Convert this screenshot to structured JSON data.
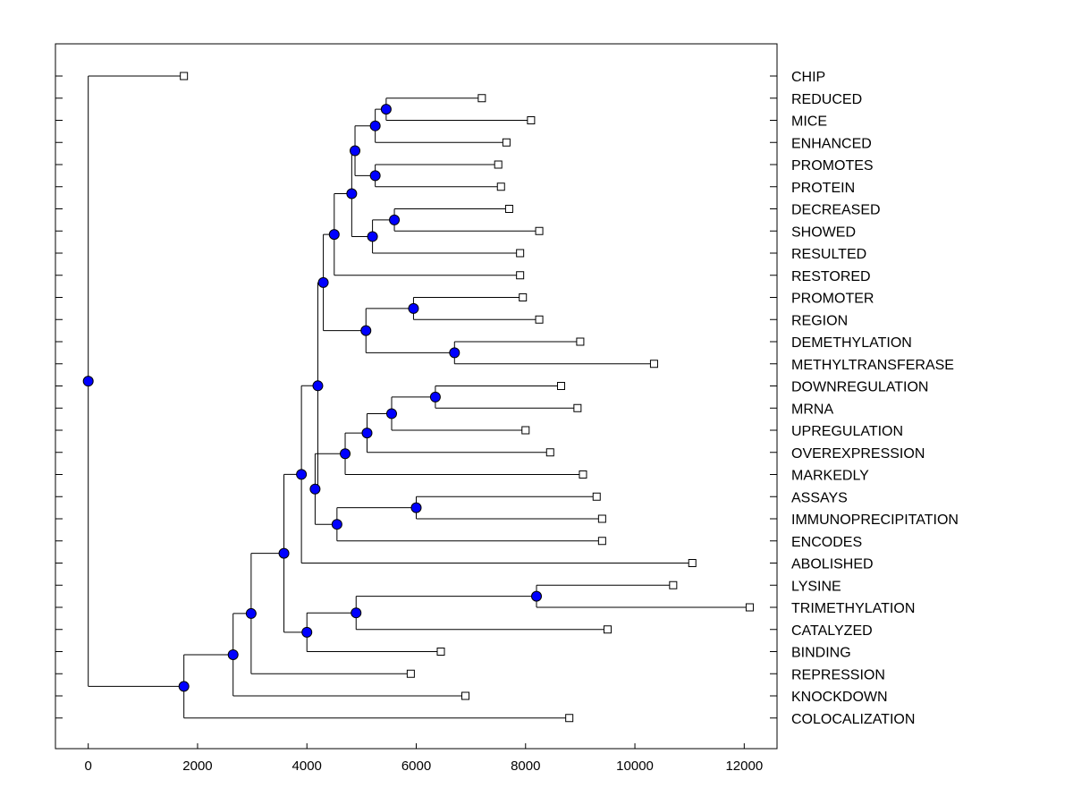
{
  "chart_data": {
    "type": "dendrogram",
    "title": "",
    "xlabel": "",
    "ylabel": "",
    "xlim": [
      -600,
      12600
    ],
    "x_ticks": [
      0,
      2000,
      4000,
      6000,
      8000,
      10000,
      12000
    ],
    "grid": false,
    "colors": {
      "node": "#0000ff",
      "line": "#000000",
      "leaf_box": "#ffffff"
    },
    "leaves": [
      {
        "label": "CHIP",
        "x": 1750
      },
      {
        "label": "REDUCED",
        "x": 7200
      },
      {
        "label": "MICE",
        "x": 8100
      },
      {
        "label": "ENHANCED",
        "x": 7650
      },
      {
        "label": "PROMOTES",
        "x": 7500
      },
      {
        "label": "PROTEIN",
        "x": 7550
      },
      {
        "label": "DECREASED",
        "x": 7700
      },
      {
        "label": "SHOWED",
        "x": 8250
      },
      {
        "label": "RESULTED",
        "x": 7900
      },
      {
        "label": "RESTORED",
        "x": 7900
      },
      {
        "label": "PROMOTER",
        "x": 7950
      },
      {
        "label": "REGION",
        "x": 8250
      },
      {
        "label": "DEMETHYLATION",
        "x": 9000
      },
      {
        "label": "METHYLTRANSFERASE",
        "x": 10350
      },
      {
        "label": "DOWNREGULATION",
        "x": 8650
      },
      {
        "label": "MRNA",
        "x": 8950
      },
      {
        "label": "UPREGULATION",
        "x": 8000
      },
      {
        "label": "OVEREXPRESSION",
        "x": 8450
      },
      {
        "label": "MARKEDLY",
        "x": 9050
      },
      {
        "label": "ASSAYS",
        "x": 9300
      },
      {
        "label": "IMMUNOPRECIPITATION",
        "x": 9400
      },
      {
        "label": "ENCODES",
        "x": 9400
      },
      {
        "label": "ABOLISHED",
        "x": 11050
      },
      {
        "label": "LYSINE",
        "x": 10700
      },
      {
        "label": "TRIMETHYLATION",
        "x": 12100
      },
      {
        "label": "CATALYZED",
        "x": 9500
      },
      {
        "label": "BINDING",
        "x": 6450
      },
      {
        "label": "REPRESSION",
        "x": 5900
      },
      {
        "label": "KNOCKDOWN",
        "x": 6900
      },
      {
        "label": "COLOCALIZATION",
        "x": 8800
      }
    ],
    "merges": [
      {
        "id": "n_rm",
        "x": 5450,
        "children": [
          "REDUCED",
          "MICE"
        ]
      },
      {
        "id": "n_rme",
        "x": 5250,
        "children": [
          "n_rm",
          "ENHANCED"
        ]
      },
      {
        "id": "n_pp",
        "x": 5250,
        "children": [
          "PROMOTES",
          "PROTEIN"
        ]
      },
      {
        "id": "n_a",
        "x": 4880,
        "children": [
          "n_rme",
          "n_pp"
        ]
      },
      {
        "id": "n_ds",
        "x": 5600,
        "children": [
          "DECREASED",
          "SHOWED"
        ]
      },
      {
        "id": "n_dsr",
        "x": 5200,
        "children": [
          "n_ds",
          "RESULTED"
        ]
      },
      {
        "id": "n_b",
        "x": 4820,
        "children": [
          "n_a",
          "n_dsr"
        ]
      },
      {
        "id": "n_c",
        "x": 4500,
        "children": [
          "n_b",
          "RESTORED"
        ]
      },
      {
        "id": "n_pr",
        "x": 5950,
        "children": [
          "PROMOTER",
          "REGION"
        ]
      },
      {
        "id": "n_dm",
        "x": 6700,
        "children": [
          "DEMETHYLATION",
          "METHYLTRANSFERASE"
        ]
      },
      {
        "id": "n_d",
        "x": 5080,
        "children": [
          "n_pr",
          "n_dm"
        ]
      },
      {
        "id": "n_e",
        "x": 4300,
        "children": [
          "n_c",
          "n_d"
        ]
      },
      {
        "id": "n_dwm",
        "x": 6350,
        "children": [
          "DOWNREGULATION",
          "MRNA"
        ]
      },
      {
        "id": "n_f",
        "x": 5550,
        "children": [
          "n_dwm",
          "UPREGULATION"
        ]
      },
      {
        "id": "n_g",
        "x": 5100,
        "children": [
          "n_f",
          "OVEREXPRESSION"
        ]
      },
      {
        "id": "n_h",
        "x": 4700,
        "children": [
          "n_g",
          "MARKEDLY"
        ]
      },
      {
        "id": "n_ai",
        "x": 6000,
        "children": [
          "ASSAYS",
          "IMMUNOPRECIPITATION"
        ]
      },
      {
        "id": "n_i",
        "x": 4550,
        "children": [
          "n_ai",
          "ENCODES"
        ]
      },
      {
        "id": "n_j",
        "x": 4150,
        "children": [
          "n_h",
          "n_i"
        ]
      },
      {
        "id": "n_k",
        "x": 4200,
        "children": [
          "n_e",
          "n_j"
        ]
      },
      {
        "id": "n_l",
        "x": 3900,
        "children": [
          "n_k",
          "ABOLISHED"
        ]
      },
      {
        "id": "n_lt",
        "x": 8200,
        "children": [
          "LYSINE",
          "TRIMETHYLATION"
        ]
      },
      {
        "id": "n_m",
        "x": 4900,
        "children": [
          "n_lt",
          "CATALYZED"
        ]
      },
      {
        "id": "n_n",
        "x": 4000,
        "children": [
          "n_m",
          "BINDING"
        ]
      },
      {
        "id": "n_o",
        "x": 3580,
        "children": [
          "n_l",
          "n_n"
        ]
      },
      {
        "id": "n_p",
        "x": 2980,
        "children": [
          "n_o",
          "REPRESSION"
        ]
      },
      {
        "id": "n_q",
        "x": 2650,
        "children": [
          "n_p",
          "KNOCKDOWN"
        ]
      },
      {
        "id": "n_r",
        "x": 1750,
        "children": [
          "n_q",
          "COLOCALIZATION"
        ]
      },
      {
        "id": "n_root",
        "x": 0,
        "children": [
          "CHIP",
          "n_r"
        ]
      }
    ]
  }
}
